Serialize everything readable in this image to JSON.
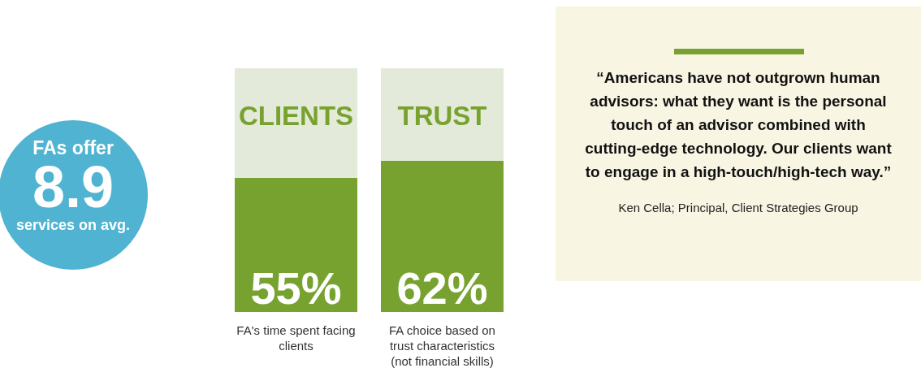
{
  "chart_data": [
    {
      "type": "other",
      "color": "#4fb3d1",
      "annotations": [
        "FAs offer",
        "8.9",
        "services on avg."
      ]
    },
    {
      "type": "bar",
      "categories": [
        "FA's time spent facing clients",
        "FA choice based on trust characteristics (not financial skills)"
      ],
      "values": [
        55,
        62
      ],
      "color": "#78a22f",
      "ylim": [
        0,
        100
      ],
      "tick_labels": "x",
      "value_labels": [
        "55%",
        "62%"
      ],
      "annotations": [
        "CLIENTS",
        "TRUST"
      ]
    },
    {
      "type": "other",
      "color": "#78a22f",
      "annotations": [
        "“Americans have not outgrown human advisors: what they want is the personal touch of an advisor combined with cutting-edge technology. Our clients want to engage in a high-touch/high-tech way.”",
        "Ken Cella; Principal, Client Strategies Group"
      ]
    }
  ]
}
